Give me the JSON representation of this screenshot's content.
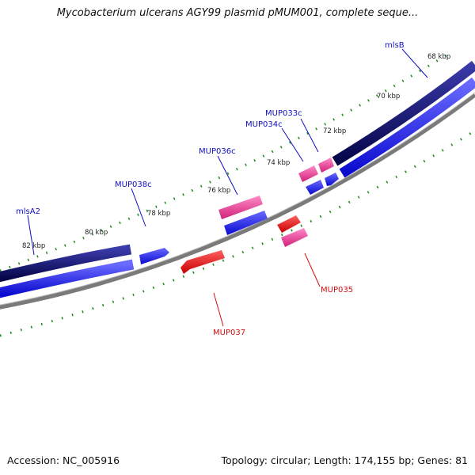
{
  "header": {
    "title": "Mycobacterium ulcerans AGY99 plasmid pMUM001, complete seque..."
  },
  "footer": {
    "accession": "Accession: NC_005916",
    "summary": "Topology: circular; Length: 174,155 bp; Genes: 81"
  },
  "colors": {
    "backbone": "#808080",
    "dark_feature": "#0a0a6e",
    "forward_gene": "#1f1fe6",
    "reverse_gene": "#e01010",
    "pink_gene": "#e8358f",
    "tick": "#1a8a1a",
    "label_blue": "#1010c0",
    "label_red": "#d01010"
  },
  "scale_labels": [
    "68 kbp",
    "70 kbp",
    "72 kbp",
    "74 kbp",
    "76 kbp",
    "78 kbp",
    "80 kbp",
    "82 kbp"
  ],
  "gene_labels": {
    "mlsB": "mlsB",
    "MUP033c": "MUP033c",
    "MUP034c": "MUP034c",
    "MUP036c": "MUP036c",
    "MUP038c": "MUP038c",
    "mlsA2": "mlsA2",
    "MUP035": "MUP035",
    "MUP037": "MUP037"
  }
}
